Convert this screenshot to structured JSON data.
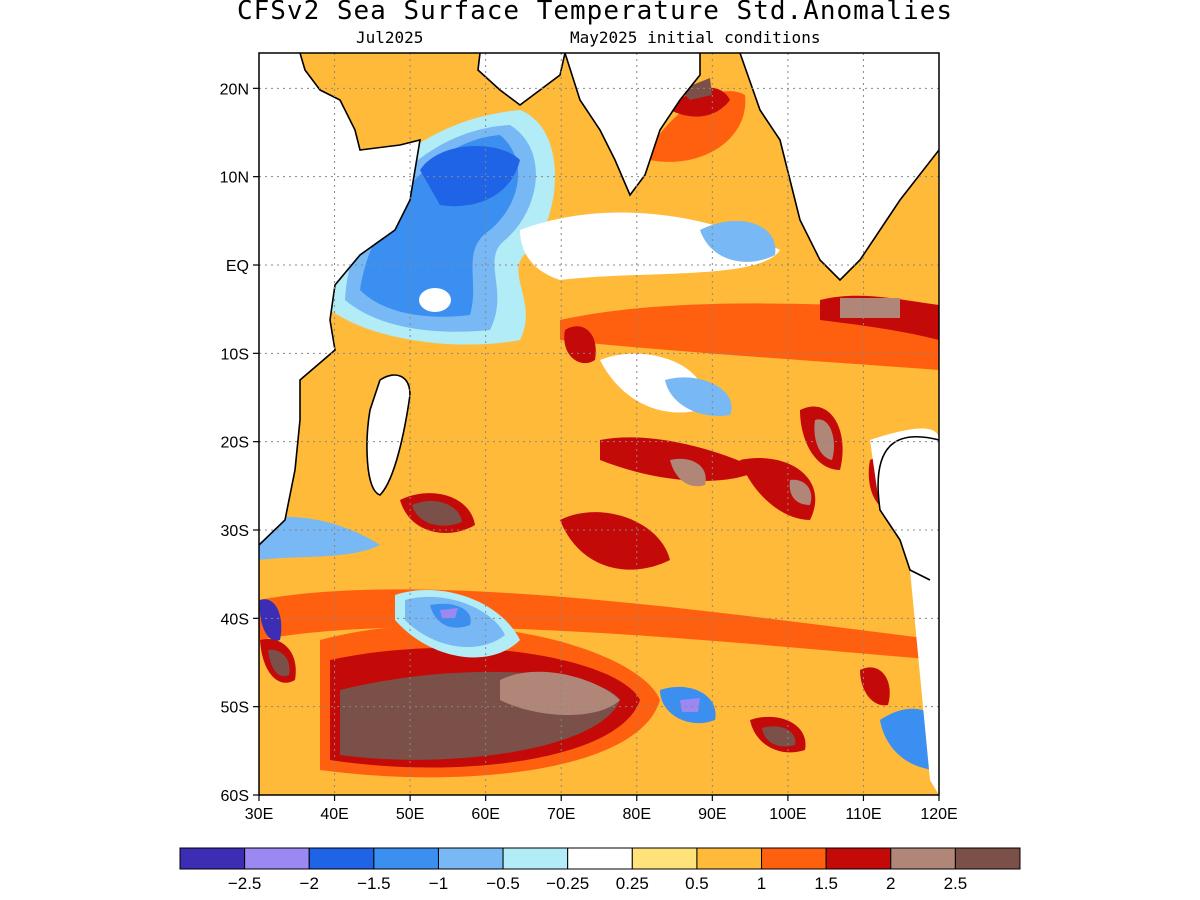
{
  "title": "CFSv2 Sea Surface Temperature Std.Anomalies",
  "subtitle_left": "Jul2025",
  "subtitle_right": "May2025 initial conditions",
  "chart_data": {
    "type": "heatmap",
    "lat_range": [
      -60,
      24
    ],
    "lon_range": [
      30,
      120
    ],
    "y_ticks": [
      "20N",
      "10N",
      "EQ",
      "10S",
      "20S",
      "30S",
      "40S",
      "50S",
      "60S"
    ],
    "x_ticks": [
      "30E",
      "40E",
      "50E",
      "60E",
      "70E",
      "80E",
      "90E",
      "100E",
      "110E",
      "120E"
    ],
    "grid": true,
    "colorbar": {
      "colors": [
        "#3c2db5",
        "#9b88f2",
        "#1f64e6",
        "#3a8ff0",
        "#78b8f4",
        "#b1ecf7",
        "#ffffff",
        "#ffe37a",
        "#ffba3a",
        "#ff6010",
        "#c40909",
        "#b08679",
        "#7a5048"
      ],
      "labels": [
        "-2.5",
        "-2",
        "-1.5",
        "-1",
        "-0.5",
        "-0.25",
        "0.25",
        "0.5",
        "1",
        "1.5",
        "2",
        "2.5"
      ]
    }
  }
}
